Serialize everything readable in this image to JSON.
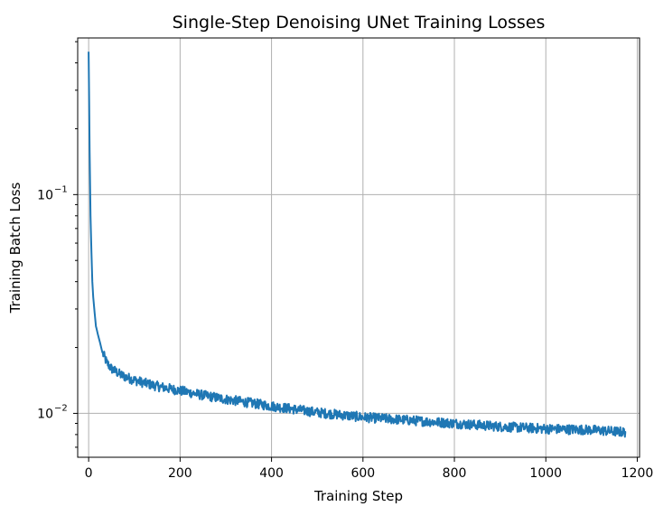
{
  "chart_data": {
    "type": "line",
    "title": "Single-Step Denoising UNet Training Losses",
    "xlabel": "Training Step",
    "ylabel": "Training Batch Loss",
    "xlim": [
      -24,
      1205
    ],
    "ylim": [
      0.0063,
      0.52
    ],
    "yscale": "log",
    "grid": true,
    "x_ticks": [
      0,
      200,
      400,
      600,
      800,
      1000,
      1200
    ],
    "x_tick_labels": [
      "0",
      "200",
      "400",
      "600",
      "800",
      "1000",
      "1200"
    ],
    "y_major_ticks": [
      {
        "value": 0.01,
        "base": "10",
        "exp": "−2"
      },
      {
        "value": 0.1,
        "base": "10",
        "exp": "−1"
      }
    ],
    "series": [
      {
        "color": "#1f77b4",
        "x": [
          0,
          2,
          4,
          6,
          8,
          10,
          13,
          16,
          20,
          25,
          30,
          40,
          50,
          60,
          70,
          80,
          100,
          120,
          150,
          200,
          250,
          300,
          400,
          500,
          600,
          700,
          800,
          900,
          1000,
          1100,
          1175
        ],
        "y": [
          0.45,
          0.16,
          0.08,
          0.055,
          0.04,
          0.034,
          0.029,
          0.025,
          0.023,
          0.021,
          0.019,
          0.017,
          0.016,
          0.0155,
          0.015,
          0.0147,
          0.0142,
          0.0138,
          0.0133,
          0.0127,
          0.0121,
          0.0116,
          0.0108,
          0.0101,
          0.0096,
          0.0093,
          0.009,
          0.0087,
          0.0085,
          0.0084,
          0.0082
        ]
      }
    ]
  }
}
